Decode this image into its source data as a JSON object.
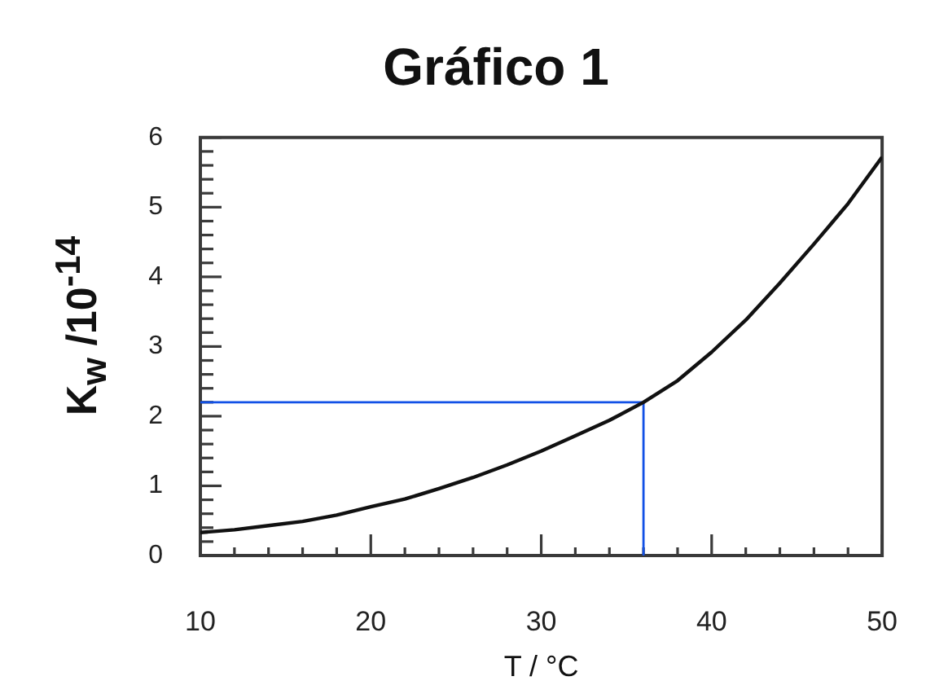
{
  "chart_data": {
    "type": "line",
    "title": "Gráfico 1",
    "xlabel": "T / °C",
    "ylabel": "K$_{w}$ /10$^{-14}$",
    "x": [
      10,
      12,
      14,
      16,
      18,
      20,
      22,
      24,
      26,
      28,
      30,
      32,
      34,
      36,
      38,
      40,
      42,
      44,
      46,
      48,
      50
    ],
    "series": [
      {
        "color": "#111111",
        "values": [
          0.33,
          0.37,
          0.43,
          0.49,
          0.58,
          0.7,
          0.81,
          0.96,
          1.12,
          1.3,
          1.5,
          1.72,
          1.94,
          2.2,
          2.51,
          2.92,
          3.38,
          3.91,
          4.47,
          5.05,
          5.72
        ]
      }
    ],
    "ref_lines": [
      {
        "axis": "x",
        "value": 36,
        "color": "#1150e6"
      },
      {
        "axis": "y",
        "value": 2.2,
        "color": "#1150e6"
      }
    ],
    "xlim": [
      10,
      50
    ],
    "ylim": [
      0,
      6
    ],
    "xticks": [
      10,
      {
        "value": 12,
        "label": null
      },
      {
        "value": 14,
        "label": null
      },
      {
        "value": 16,
        "label": null
      },
      {
        "value": 18,
        "label": null
      },
      20,
      {
        "value": 22,
        "label": null
      },
      {
        "value": 24,
        "label": null
      },
      {
        "value": 26,
        "label": null
      },
      {
        "value": 28,
        "label": null
      },
      30,
      {
        "value": 32,
        "label": null
      },
      {
        "value": 34,
        "label": null
      },
      {
        "value": 36,
        "label": null
      },
      {
        "value": 38,
        "label": null
      },
      40,
      {
        "value": 42,
        "label": null
      },
      {
        "value": 44,
        "label": null
      },
      {
        "value": 46,
        "label": null
      },
      {
        "value": 48,
        "label": null
      },
      50
    ],
    "yticks": [
      0,
      {
        "value": 0.2,
        "label": null
      },
      {
        "value": 0.4,
        "label": null
      },
      {
        "value": 0.6,
        "label": null
      },
      {
        "value": 0.8,
        "label": null
      },
      1,
      {
        "value": 1.2,
        "label": null
      },
      {
        "value": 1.4,
        "label": null
      },
      {
        "value": 1.6,
        "label": null
      },
      {
        "value": 1.8,
        "label": null
      },
      2,
      {
        "value": 2.2,
        "label": null
      },
      {
        "value": 2.4,
        "label": null
      },
      {
        "value": 2.6,
        "label": null
      },
      {
        "value": 2.8,
        "label": null
      },
      3,
      {
        "value": 3.2,
        "label": null
      },
      {
        "value": 3.4,
        "label": null
      },
      {
        "value": 3.6,
        "label": null
      },
      {
        "value": 3.8,
        "label": null
      },
      4,
      {
        "value": 4.2,
        "label": null
      },
      {
        "value": 4.4,
        "label": null
      },
      {
        "value": 4.6,
        "label": null
      },
      {
        "value": 4.8,
        "label": null
      },
      5,
      {
        "value": 5.2,
        "label": null
      },
      {
        "value": 5.4,
        "label": null
      },
      {
        "value": 5.6,
        "label": null
      },
      {
        "value": 5.8,
        "label": null
      },
      6
    ],
    "grid": false,
    "legend": false,
    "marker": "none",
    "line_style": "solid"
  }
}
